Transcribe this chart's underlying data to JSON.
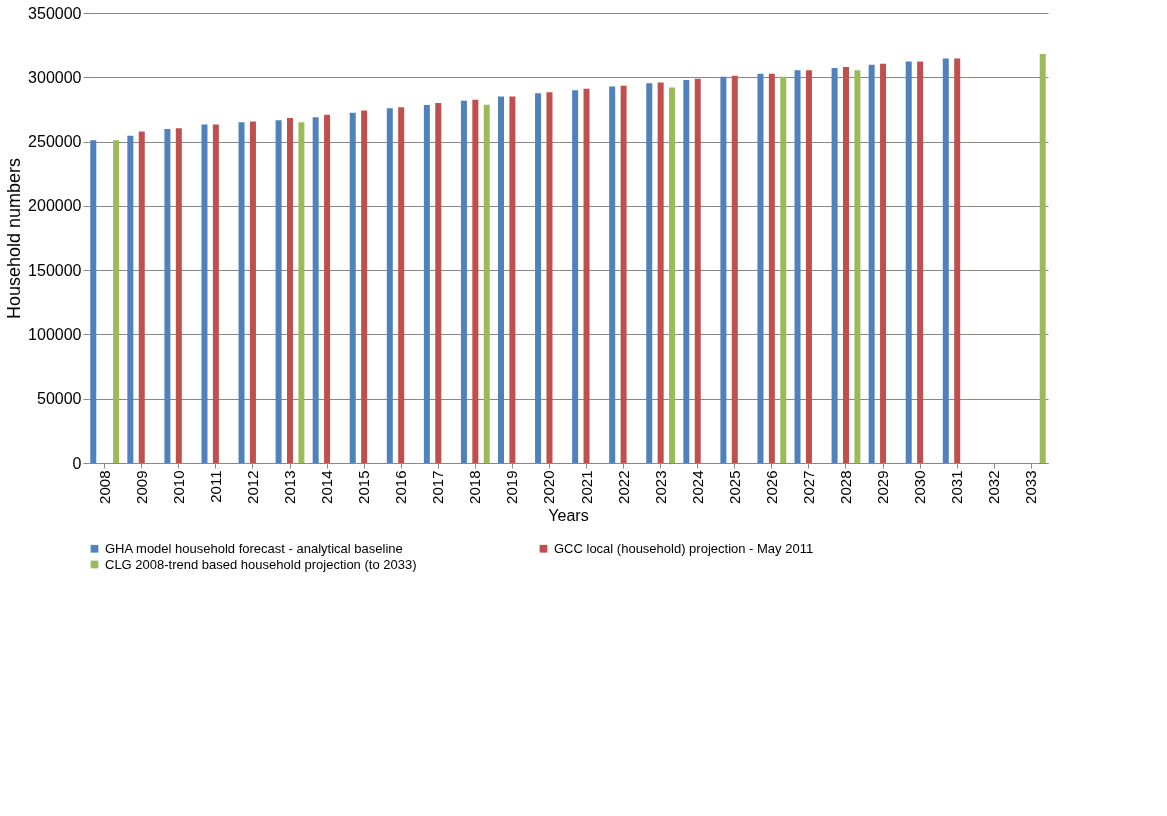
{
  "chart_data": {
    "type": "bar",
    "xlabel": "Years",
    "ylabel": "Household numbers",
    "categories": [
      "2008",
      "2009",
      "2010",
      "2011",
      "2012",
      "2013",
      "2014",
      "2015",
      "2016",
      "2017",
      "2018",
      "2019",
      "2020",
      "2021",
      "2022",
      "2023",
      "2024",
      "2025",
      "2026",
      "2027",
      "2028",
      "2029",
      "2030",
      "2031",
      "2032",
      "2033"
    ],
    "series": [
      {
        "name": "GHA model household forecast - analytical baseline",
        "color": "#4f81bd",
        "values": [
          251000,
          254600,
          259700,
          263200,
          265000,
          266500,
          269000,
          272400,
          275900,
          278400,
          281700,
          285100,
          287600,
          290000,
          292800,
          295300,
          297800,
          300500,
          302700,
          305500,
          307200,
          309700,
          312200,
          314700,
          null,
          null
        ]
      },
      {
        "name": "GCC local (household) projection - May 2011",
        "color": "#c0504d",
        "values": [
          null,
          257900,
          260400,
          263200,
          265700,
          268300,
          270800,
          274100,
          276700,
          280000,
          282500,
          285100,
          288300,
          291000,
          293500,
          296000,
          298800,
          301200,
          302700,
          305500,
          308000,
          310500,
          312200,
          314700,
          null,
          null
        ]
      },
      {
        "name": "CLG 2008-trend based household projection (to 2033)",
        "color": "#9bbb59",
        "values": [
          251000,
          null,
          null,
          null,
          null,
          265000,
          null,
          null,
          null,
          null,
          278700,
          null,
          null,
          null,
          null,
          292000,
          null,
          null,
          300500,
          null,
          305500,
          null,
          null,
          null,
          null,
          318200
        ]
      }
    ],
    "ylim": [
      0,
      350000
    ],
    "yticks": [
      0,
      50000,
      100000,
      150000,
      200000,
      250000,
      300000,
      350000
    ],
    "grid": "y",
    "legend": "bottom"
  }
}
